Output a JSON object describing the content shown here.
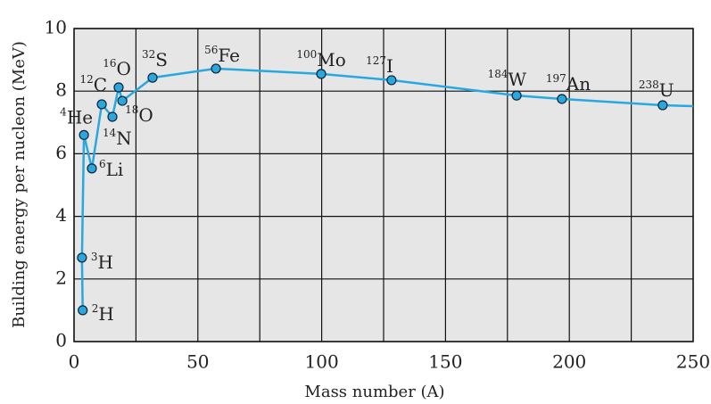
{
  "chart_data": {
    "type": "line",
    "xlabel": "Mass number (A)",
    "ylabel": "Building energy per nucleon (MeV)",
    "xlim": [
      0,
      250
    ],
    "ylim": [
      0,
      10
    ],
    "xticks": [
      0,
      50,
      100,
      150,
      200,
      250
    ],
    "xgrid": [
      25,
      75,
      125,
      175,
      225
    ],
    "yticks": [
      0,
      2,
      4,
      6,
      8,
      10
    ],
    "grid": true,
    "color": "#29a8e0",
    "x": [
      3.5,
      3.2,
      4,
      7.2,
      11.2,
      15.5,
      18,
      19.5,
      31.7,
      57.3,
      99.8,
      128.2,
      178.7,
      197,
      237.7,
      250
    ],
    "y": [
      1.0,
      2.68,
      6.6,
      5.53,
      7.58,
      7.18,
      8.12,
      7.69,
      8.43,
      8.72,
      8.55,
      8.35,
      7.86,
      7.75,
      7.55,
      7.52
    ],
    "labels": [
      {
        "sup": "2",
        "sym": "H"
      },
      {
        "sup": "3",
        "sym": "H"
      },
      {
        "sup": "4",
        "sym": "He"
      },
      {
        "sup": "6",
        "sym": "Li"
      },
      {
        "sup": "12",
        "sym": "C"
      },
      {
        "sup": "14",
        "sym": "N"
      },
      {
        "sup": "16",
        "sym": "O"
      },
      {
        "sup": "18",
        "sym": "O"
      },
      {
        "sup": "32",
        "sym": "S"
      },
      {
        "sup": "56",
        "sym": "Fe"
      },
      {
        "sup": "100",
        "sym": "Mo"
      },
      {
        "sup": "127",
        "sym": "I"
      },
      {
        "sup": "184",
        "sym": "W"
      },
      {
        "sup": "197",
        "sym": "An"
      },
      {
        "sup": "238",
        "sym": "U"
      },
      null
    ]
  }
}
